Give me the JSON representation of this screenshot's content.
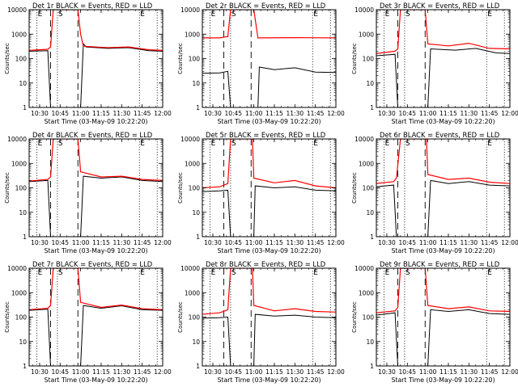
{
  "chart_data": {
    "type": "line",
    "scale": "log",
    "ylim": [
      1,
      10000
    ],
    "yticks": [
      "1",
      "10",
      "100",
      "1000",
      "10000"
    ],
    "ylabel": "Counts/sec",
    "xlabel": "Start Time (03-May-09 10:22:20)",
    "xlim": [
      "10:22:20",
      "12:00:00"
    ],
    "xticks": [
      "10:30",
      "10:45",
      "11:00",
      "11:15",
      "11:30",
      "11:45",
      "12:00"
    ],
    "markers": [
      {
        "label": "E",
        "time": "10:28",
        "style": "dotted"
      },
      {
        "label": "",
        "time": "10:38",
        "style": "dashed"
      },
      {
        "label": "S",
        "time": "10:43",
        "style": "dotted"
      },
      {
        "label": "",
        "time": "10:58",
        "style": "dashed"
      },
      {
        "label": "E",
        "time": "11:43",
        "style": "dotted"
      },
      {
        "label": "",
        "time": "11:56",
        "style": "dotted"
      }
    ],
    "series_colors": {
      "events": "#000000",
      "lld": "#ff0000"
    },
    "series_legend": "BLACK = Events, RED = LLD",
    "panels": [
      {
        "title": "Det 1r  BLACK = Events, RED = LLD",
        "events": [
          {
            "x": "10:22",
            "y": 200
          },
          {
            "x": "10:36",
            "y": 210
          },
          {
            "x": "10:38",
            "y": 1
          },
          {
            "x": "11:00",
            "y": 1
          },
          {
            "x": "11:02",
            "y": 400
          },
          {
            "x": "11:04",
            "y": 300
          },
          {
            "x": "11:20",
            "y": 260
          },
          {
            "x": "11:35",
            "y": 280
          },
          {
            "x": "11:50",
            "y": 210
          },
          {
            "x": "12:00",
            "y": 200
          }
        ],
        "lld": [
          {
            "x": "10:22",
            "y": 215
          },
          {
            "x": "10:36",
            "y": 240
          },
          {
            "x": "10:38",
            "y": 300
          },
          {
            "x": "10:40",
            "y": 10000
          },
          {
            "x": "10:58",
            "y": 10000
          },
          {
            "x": "11:00",
            "y": 1000
          },
          {
            "x": "11:02",
            "y": 320
          },
          {
            "x": "11:20",
            "y": 280
          },
          {
            "x": "11:35",
            "y": 300
          },
          {
            "x": "11:50",
            "y": 230
          },
          {
            "x": "12:00",
            "y": 215
          }
        ]
      },
      {
        "title": "Det 2r  BLACK = Events, RED = LLD",
        "events": [
          {
            "x": "10:22",
            "y": 25
          },
          {
            "x": "10:35",
            "y": 26
          },
          {
            "x": "10:41",
            "y": 30
          },
          {
            "x": "10:43",
            "y": 1
          },
          {
            "x": "11:03",
            "y": 1
          },
          {
            "x": "11:04",
            "y": 45
          },
          {
            "x": "11:15",
            "y": 35
          },
          {
            "x": "11:30",
            "y": 42
          },
          {
            "x": "11:45",
            "y": 28
          },
          {
            "x": "12:00",
            "y": 27
          }
        ],
        "lld": [
          {
            "x": "10:22",
            "y": 700
          },
          {
            "x": "10:35",
            "y": 700
          },
          {
            "x": "10:41",
            "y": 800
          },
          {
            "x": "10:43",
            "y": 10000
          },
          {
            "x": "11:00",
            "y": 10000
          },
          {
            "x": "11:03",
            "y": 700
          },
          {
            "x": "11:30",
            "y": 720
          },
          {
            "x": "12:00",
            "y": 700
          }
        ]
      },
      {
        "title": "Det 3r  BLACK = Events, RED = LLD",
        "events": [
          {
            "x": "10:22",
            "y": 130
          },
          {
            "x": "10:36",
            "y": 150
          },
          {
            "x": "10:38",
            "y": 1
          },
          {
            "x": "11:00",
            "y": 1
          },
          {
            "x": "11:02",
            "y": 250
          },
          {
            "x": "11:20",
            "y": 220
          },
          {
            "x": "11:35",
            "y": 260
          },
          {
            "x": "11:50",
            "y": 170
          },
          {
            "x": "12:00",
            "y": 160
          }
        ],
        "lld": [
          {
            "x": "10:22",
            "y": 160
          },
          {
            "x": "10:36",
            "y": 200
          },
          {
            "x": "10:38",
            "y": 250
          },
          {
            "x": "10:40",
            "y": 10000
          },
          {
            "x": "10:58",
            "y": 10000
          },
          {
            "x": "11:00",
            "y": 400
          },
          {
            "x": "11:15",
            "y": 330
          },
          {
            "x": "11:30",
            "y": 420
          },
          {
            "x": "11:45",
            "y": 260
          },
          {
            "x": "12:00",
            "y": 250
          }
        ]
      },
      {
        "title": "Det 4r  BLACK = Events, RED = LLD",
        "events": [
          {
            "x": "10:22",
            "y": 180
          },
          {
            "x": "10:36",
            "y": 200
          },
          {
            "x": "10:38",
            "y": 1
          },
          {
            "x": "11:00",
            "y": 1
          },
          {
            "x": "11:02",
            "y": 300
          },
          {
            "x": "11:15",
            "y": 250
          },
          {
            "x": "11:30",
            "y": 280
          },
          {
            "x": "11:45",
            "y": 200
          },
          {
            "x": "12:00",
            "y": 180
          }
        ],
        "lld": [
          {
            "x": "10:22",
            "y": 190
          },
          {
            "x": "10:36",
            "y": 220
          },
          {
            "x": "10:38",
            "y": 280
          },
          {
            "x": "10:40",
            "y": 10000
          },
          {
            "x": "10:58",
            "y": 10000
          },
          {
            "x": "11:00",
            "y": 450
          },
          {
            "x": "11:15",
            "y": 280
          },
          {
            "x": "11:30",
            "y": 300
          },
          {
            "x": "11:45",
            "y": 220
          },
          {
            "x": "12:00",
            "y": 200
          }
        ]
      },
      {
        "title": "Det 5r  BLACK = Events, RED = LLD",
        "events": [
          {
            "x": "10:22",
            "y": 70
          },
          {
            "x": "10:35",
            "y": 75
          },
          {
            "x": "10:41",
            "y": 80
          },
          {
            "x": "10:43",
            "y": 1
          },
          {
            "x": "11:00",
            "y": 1
          },
          {
            "x": "11:01",
            "y": 120
          },
          {
            "x": "11:15",
            "y": 100
          },
          {
            "x": "11:30",
            "y": 110
          },
          {
            "x": "11:45",
            "y": 80
          },
          {
            "x": "12:00",
            "y": 75
          }
        ],
        "lld": [
          {
            "x": "10:22",
            "y": 100
          },
          {
            "x": "10:35",
            "y": 110
          },
          {
            "x": "10:41",
            "y": 150
          },
          {
            "x": "10:43",
            "y": 10000
          },
          {
            "x": "10:59",
            "y": 10000
          },
          {
            "x": "11:00",
            "y": 250
          },
          {
            "x": "11:15",
            "y": 160
          },
          {
            "x": "11:30",
            "y": 200
          },
          {
            "x": "11:45",
            "y": 120
          },
          {
            "x": "12:00",
            "y": 100
          }
        ]
      },
      {
        "title": "Det 6r  BLACK = Events, RED = LLD",
        "events": [
          {
            "x": "10:22",
            "y": 110
          },
          {
            "x": "10:35",
            "y": 130
          },
          {
            "x": "10:37",
            "y": 1
          },
          {
            "x": "11:00",
            "y": 1
          },
          {
            "x": "11:02",
            "y": 200
          },
          {
            "x": "11:15",
            "y": 150
          },
          {
            "x": "11:30",
            "y": 180
          },
          {
            "x": "11:45",
            "y": 130
          },
          {
            "x": "12:00",
            "y": 120
          }
        ],
        "lld": [
          {
            "x": "10:22",
            "y": 150
          },
          {
            "x": "10:35",
            "y": 180
          },
          {
            "x": "10:37",
            "y": 250
          },
          {
            "x": "10:40",
            "y": 10000
          },
          {
            "x": "10:59",
            "y": 10000
          },
          {
            "x": "11:00",
            "y": 350
          },
          {
            "x": "11:15",
            "y": 220
          },
          {
            "x": "11:30",
            "y": 250
          },
          {
            "x": "11:45",
            "y": 170
          },
          {
            "x": "12:00",
            "y": 150
          }
        ]
      },
      {
        "title": "Det 7r  BLACK = Events, RED = LLD",
        "events": [
          {
            "x": "10:22",
            "y": 190
          },
          {
            "x": "10:36",
            "y": 210
          },
          {
            "x": "10:38",
            "y": 1
          },
          {
            "x": "11:00",
            "y": 1
          },
          {
            "x": "11:02",
            "y": 300
          },
          {
            "x": "11:15",
            "y": 230
          },
          {
            "x": "11:30",
            "y": 290
          },
          {
            "x": "11:45",
            "y": 200
          },
          {
            "x": "12:00",
            "y": 190
          }
        ],
        "lld": [
          {
            "x": "10:22",
            "y": 200
          },
          {
            "x": "10:36",
            "y": 230
          },
          {
            "x": "10:38",
            "y": 300
          },
          {
            "x": "10:40",
            "y": 10000
          },
          {
            "x": "10:58",
            "y": 10000
          },
          {
            "x": "11:00",
            "y": 400
          },
          {
            "x": "11:15",
            "y": 250
          },
          {
            "x": "11:30",
            "y": 310
          },
          {
            "x": "11:45",
            "y": 220
          },
          {
            "x": "12:00",
            "y": 200
          }
        ]
      },
      {
        "title": "Det 8r  BLACK = Events, RED = LLD",
        "events": [
          {
            "x": "10:22",
            "y": 90
          },
          {
            "x": "10:35",
            "y": 95
          },
          {
            "x": "10:41",
            "y": 100
          },
          {
            "x": "10:43",
            "y": 1
          },
          {
            "x": "11:00",
            "y": 1
          },
          {
            "x": "11:01",
            "y": 130
          },
          {
            "x": "11:15",
            "y": 110
          },
          {
            "x": "11:30",
            "y": 120
          },
          {
            "x": "11:45",
            "y": 100
          },
          {
            "x": "12:00",
            "y": 95
          }
        ],
        "lld": [
          {
            "x": "10:22",
            "y": 130
          },
          {
            "x": "10:35",
            "y": 150
          },
          {
            "x": "10:41",
            "y": 200
          },
          {
            "x": "10:43",
            "y": 10000
          },
          {
            "x": "10:59",
            "y": 10000
          },
          {
            "x": "11:00",
            "y": 300
          },
          {
            "x": "11:15",
            "y": 180
          },
          {
            "x": "11:30",
            "y": 220
          },
          {
            "x": "11:45",
            "y": 170
          },
          {
            "x": "12:00",
            "y": 160
          }
        ]
      },
      {
        "title": "Det 9r  BLACK = Events, RED = LLD",
        "events": [
          {
            "x": "10:22",
            "y": 120
          },
          {
            "x": "10:36",
            "y": 150
          },
          {
            "x": "10:38",
            "y": 1
          },
          {
            "x": "11:00",
            "y": 1
          },
          {
            "x": "11:02",
            "y": 200
          },
          {
            "x": "11:15",
            "y": 170
          },
          {
            "x": "11:30",
            "y": 200
          },
          {
            "x": "11:45",
            "y": 140
          },
          {
            "x": "12:00",
            "y": 130
          }
        ],
        "lld": [
          {
            "x": "10:22",
            "y": 150
          },
          {
            "x": "10:36",
            "y": 180
          },
          {
            "x": "10:38",
            "y": 250
          },
          {
            "x": "10:40",
            "y": 10000
          },
          {
            "x": "10:58",
            "y": 10000
          },
          {
            "x": "11:00",
            "y": 300
          },
          {
            "x": "11:15",
            "y": 220
          },
          {
            "x": "11:30",
            "y": 260
          },
          {
            "x": "11:45",
            "y": 180
          },
          {
            "x": "12:00",
            "y": 170
          }
        ]
      }
    ]
  }
}
